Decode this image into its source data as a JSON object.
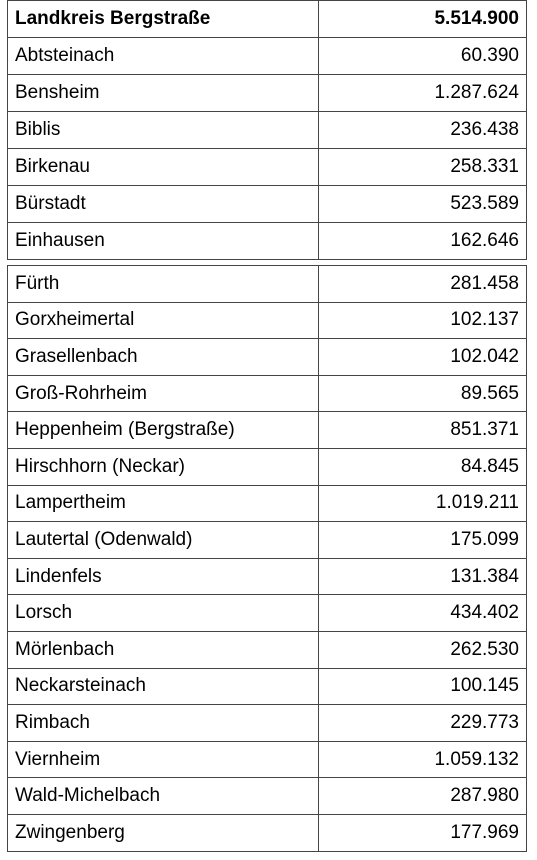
{
  "tables": [
    {
      "rows": [
        [
          "Landkreis Bergstraße",
          "5.514.900"
        ],
        [
          "Abtsteinach",
          "60.390"
        ],
        [
          "Bensheim",
          "1.287.624"
        ],
        [
          "Biblis",
          "236.438"
        ],
        [
          "Birkenau",
          "258.331"
        ],
        [
          "Bürstadt",
          "523.589"
        ],
        [
          "Einhausen",
          "162.646"
        ]
      ]
    },
    {
      "rows": [
        [
          "Fürth",
          "281.458"
        ],
        [
          "Gorxheimertal",
          "102.137"
        ],
        [
          "Grasellenbach",
          "102.042"
        ],
        [
          "Groß-Rohrheim",
          "89.565"
        ],
        [
          "Heppenheim (Bergstraße)",
          "851.371"
        ],
        [
          "Hirschhorn (Neckar)",
          "84.845"
        ],
        [
          "Lampertheim",
          "1.019.211"
        ],
        [
          "Lautertal (Odenwald)",
          "175.099"
        ],
        [
          "Lindenfels",
          "131.384"
        ],
        [
          "Lorsch",
          "434.402"
        ],
        [
          "Mörlenbach",
          "262.530"
        ],
        [
          "Neckarsteinach",
          "100.145"
        ],
        [
          "Rimbach",
          "229.773"
        ],
        [
          "Viernheim",
          "1.059.132"
        ],
        [
          "Wald-Michelbach",
          "287.980"
        ],
        [
          "Zwingenberg",
          "177.969"
        ]
      ]
    }
  ]
}
